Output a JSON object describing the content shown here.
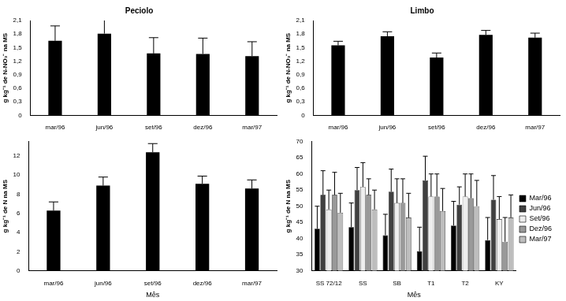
{
  "chart_data": [
    {
      "type": "bar",
      "title": "Peciolo",
      "categories": [
        "mar/96",
        "jun/96",
        "set/96",
        "dez/96",
        "mar/97"
      ],
      "values": [
        1.65,
        1.81,
        1.37,
        1.36,
        1.31
      ],
      "errors": [
        0.33,
        0.32,
        0.35,
        0.35,
        0.32
      ],
      "color": "#000000",
      "y_label": "g kg⁻¹ de N-NO₃⁻ na MS",
      "ylim": [
        0,
        2.1
      ],
      "yticks": [
        0,
        {
          "value": 0.3,
          "label": "0,3"
        },
        {
          "value": 0.6,
          "label": "0,6"
        },
        {
          "value": 0.9,
          "label": "0,9"
        },
        {
          "value": 1.2,
          "label": "1,2"
        },
        {
          "value": 1.5,
          "label": "1,5"
        },
        {
          "value": 1.8,
          "label": "1,8"
        },
        {
          "value": 2.1,
          "label": "2,1"
        }
      ],
      "grid": false
    },
    {
      "type": "bar",
      "title": "Limbo",
      "categories": [
        "mar/96",
        "jun/96",
        "set/96",
        "dez/96",
        "mar/97"
      ],
      "values": [
        1.55,
        1.75,
        1.28,
        1.78,
        1.72
      ],
      "errors": [
        0.09,
        0.1,
        0.1,
        0.1,
        0.1
      ],
      "color": "#000000",
      "y_label": "g kg⁻¹ de N-NO₃⁻ na MS",
      "ylim": [
        0,
        2.1
      ],
      "yticks": [
        0,
        {
          "value": 0.3,
          "label": "0,3"
        },
        {
          "value": 0.6,
          "label": "0,6"
        },
        {
          "value": 0.9,
          "label": "0,9"
        },
        {
          "value": 1.2,
          "label": "1,2"
        },
        {
          "value": 1.5,
          "label": "1,5"
        },
        {
          "value": 1.8,
          "label": "1,8"
        },
        {
          "value": 2.1,
          "label": "2,1"
        }
      ],
      "grid": false
    },
    {
      "type": "bar",
      "categories": [
        "mar/96",
        "jun/96",
        "set/96",
        "dez/96",
        "mar/97"
      ],
      "values": [
        6.3,
        8.9,
        12.4,
        9.1,
        8.6
      ],
      "errors": [
        0.9,
        0.9,
        0.9,
        0.8,
        0.9
      ],
      "color": "#000000",
      "x_label": "Mês",
      "y_label": "g kg⁻¹ de N na MS",
      "ylim": [
        0,
        13.5
      ],
      "yticks": [
        0,
        2,
        4,
        6,
        8,
        10,
        12
      ],
      "grid": false
    },
    {
      "type": "bar",
      "categories": [
        "SS 72/12",
        "SS",
        "SB",
        "T1",
        "T2",
        "KY"
      ],
      "series": [
        {
          "name": "Mar/96",
          "color": "#000000",
          "values": [
            43,
            43.5,
            41,
            36,
            44,
            39.5
          ],
          "errors": [
            7,
            7.5,
            6.5,
            7.5,
            7.5,
            7
          ]
        },
        {
          "name": "Jun/96",
          "color": "#404040",
          "values": [
            53.5,
            55,
            54.5,
            58,
            50.5,
            52
          ],
          "errors": [
            7.5,
            7,
            7,
            7.5,
            5.5,
            7.5
          ]
        },
        {
          "name": "Set/96",
          "color": "#eeeeee",
          "values": [
            49,
            56,
            51,
            53,
            53,
            46
          ],
          "errors": [
            6,
            7.5,
            7.5,
            7,
            7,
            7
          ]
        },
        {
          "name": "Dez/96",
          "color": "#999999",
          "values": [
            53.5,
            53.5,
            51,
            53,
            52.5,
            39
          ],
          "errors": [
            7,
            5,
            7.5,
            7,
            7.5,
            7.5
          ]
        },
        {
          "name": "Mar/97",
          "color": "#bdbdbd",
          "values": [
            48,
            49,
            46.5,
            48.5,
            50,
            46.5
          ],
          "errors": [
            6,
            6,
            7.5,
            7,
            8,
            7
          ]
        }
      ],
      "x_label": "Mês",
      "y_label": "g kg⁻¹ de N na MS",
      "ylim": [
        30,
        70
      ],
      "yticks": [
        30,
        35,
        40,
        45,
        50,
        55,
        60,
        65,
        70
      ],
      "legend": "right",
      "grid": false
    }
  ]
}
